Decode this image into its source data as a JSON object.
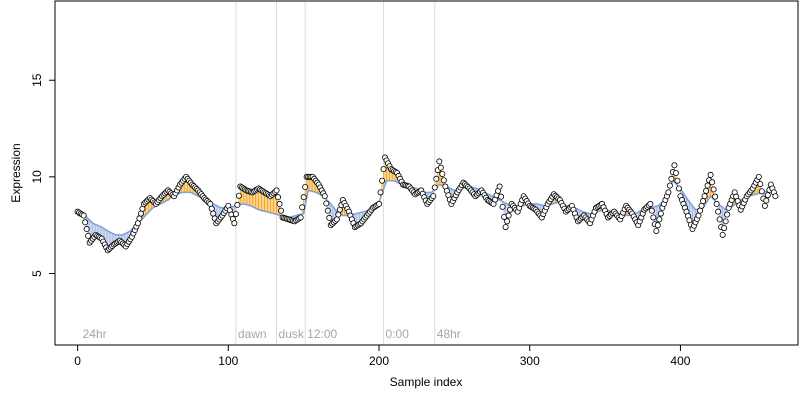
{
  "chart_data": {
    "type": "line",
    "xlabel": "Sample index",
    "ylabel": "Expression",
    "xlim": [
      -15,
      478
    ],
    "ylim": [
      1.3,
      19.1
    ],
    "x_ticks": [
      0,
      100,
      200,
      300,
      400
    ],
    "y_ticks": [
      5,
      10,
      15
    ],
    "x_tick_labels": [
      "0",
      "100",
      "200",
      "300",
      "400"
    ],
    "y_tick_labels": [
      "5",
      "10",
      "15"
    ],
    "grid": false,
    "legend": "none",
    "sections": [
      {
        "label": "24hr",
        "x": 2
      },
      {
        "label": "dawn",
        "x": 105
      },
      {
        "label": "dusk",
        "x": 132
      },
      {
        "label": "12:00",
        "x": 151
      },
      {
        "label": "0:00",
        "x": 203
      },
      {
        "label": "48hr",
        "x": 237
      }
    ],
    "colors": {
      "fitted_line": "#7f9fd8",
      "residual_above": "#f5a623",
      "residual_below": "#9fb8e6",
      "section_line": "#dcdcdc",
      "points_fill": "#ffffff",
      "points_stroke": "#000000"
    },
    "series": [
      {
        "role": "fitted",
        "anchors": [
          [
            0,
            8.0
          ],
          [
            5,
            8.0
          ],
          [
            10,
            7.6
          ],
          [
            16,
            7.4
          ],
          [
            20,
            7.2
          ],
          [
            25,
            7.0
          ],
          [
            30,
            7.0
          ],
          [
            35,
            7.2
          ],
          [
            40,
            7.6
          ],
          [
            45,
            8.0
          ],
          [
            50,
            8.4
          ],
          [
            55,
            8.6
          ],
          [
            60,
            8.8
          ],
          [
            65,
            9.1
          ],
          [
            70,
            9.2
          ],
          [
            75,
            9.2
          ],
          [
            80,
            9.0
          ],
          [
            85,
            8.8
          ],
          [
            90,
            8.6
          ],
          [
            95,
            8.4
          ],
          [
            100,
            8.4
          ],
          [
            105,
            8.5
          ],
          [
            110,
            8.6
          ],
          [
            115,
            8.5
          ],
          [
            120,
            8.3
          ],
          [
            125,
            8.2
          ],
          [
            130,
            8.1
          ],
          [
            135,
            8.0
          ],
          [
            140,
            7.9
          ],
          [
            145,
            8.0
          ],
          [
            150,
            8.1
          ],
          [
            153,
            9.3
          ],
          [
            158,
            9.2
          ],
          [
            163,
            9.0
          ],
          [
            168,
            8.6
          ],
          [
            172,
            8.2
          ],
          [
            176,
            8.0
          ],
          [
            180,
            8.0
          ],
          [
            185,
            8.1
          ],
          [
            190,
            8.2
          ],
          [
            195,
            8.3
          ],
          [
            200,
            8.7
          ],
          [
            205,
            9.8
          ],
          [
            210,
            9.8
          ],
          [
            215,
            9.6
          ],
          [
            220,
            9.5
          ],
          [
            225,
            9.4
          ],
          [
            230,
            9.2
          ],
          [
            235,
            9.2
          ],
          [
            240,
            9.6
          ],
          [
            245,
            9.5
          ],
          [
            250,
            9.3
          ],
          [
            255,
            9.4
          ],
          [
            260,
            9.5
          ],
          [
            265,
            9.4
          ],
          [
            270,
            9.2
          ],
          [
            275,
            9.0
          ],
          [
            280,
            8.8
          ],
          [
            285,
            8.6
          ],
          [
            290,
            8.4
          ],
          [
            295,
            8.5
          ],
          [
            300,
            8.6
          ],
          [
            305,
            8.6
          ],
          [
            310,
            8.5
          ],
          [
            315,
            8.6
          ],
          [
            320,
            8.7
          ],
          [
            325,
            8.5
          ],
          [
            330,
            8.4
          ],
          [
            335,
            8.2
          ],
          [
            340,
            8.1
          ],
          [
            345,
            8.2
          ],
          [
            350,
            8.3
          ],
          [
            355,
            8.2
          ],
          [
            360,
            8.0
          ],
          [
            365,
            8.0
          ],
          [
            370,
            8.1
          ],
          [
            375,
            8.3
          ],
          [
            380,
            8.4
          ],
          [
            385,
            8.5
          ],
          [
            390,
            8.8
          ],
          [
            395,
            9.8
          ],
          [
            400,
            9.4
          ],
          [
            405,
            8.8
          ],
          [
            410,
            8.3
          ],
          [
            415,
            8.4
          ],
          [
            420,
            9.0
          ],
          [
            425,
            8.6
          ],
          [
            430,
            8.3
          ],
          [
            435,
            8.5
          ],
          [
            440,
            8.8
          ],
          [
            445,
            9.0
          ],
          [
            450,
            9.1
          ],
          [
            455,
            9.2
          ],
          [
            460,
            9.3
          ],
          [
            463,
            9.3
          ]
        ]
      },
      {
        "role": "observed",
        "anchors": [
          [
            0,
            8.2
          ],
          [
            4,
            8.0
          ],
          [
            8,
            6.6
          ],
          [
            12,
            7.0
          ],
          [
            16,
            6.8
          ],
          [
            20,
            6.2
          ],
          [
            24,
            6.5
          ],
          [
            28,
            6.7
          ],
          [
            32,
            6.4
          ],
          [
            36,
            6.9
          ],
          [
            40,
            7.6
          ],
          [
            44,
            8.6
          ],
          [
            48,
            8.9
          ],
          [
            52,
            8.6
          ],
          [
            56,
            9.0
          ],
          [
            60,
            9.3
          ],
          [
            64,
            9.0
          ],
          [
            68,
            9.6
          ],
          [
            72,
            10.0
          ],
          [
            76,
            9.6
          ],
          [
            80,
            9.3
          ],
          [
            84,
            8.9
          ],
          [
            88,
            8.6
          ],
          [
            92,
            7.6
          ],
          [
            96,
            8.0
          ],
          [
            100,
            8.5
          ],
          [
            104,
            7.6
          ],
          [
            108,
            9.5
          ],
          [
            112,
            9.3
          ],
          [
            116,
            9.2
          ],
          [
            120,
            9.4
          ],
          [
            124,
            9.2
          ],
          [
            128,
            9.0
          ],
          [
            132,
            9.3
          ],
          [
            136,
            7.9
          ],
          [
            140,
            7.8
          ],
          [
            144,
            7.7
          ],
          [
            148,
            7.9
          ],
          [
            152,
            10.0
          ],
          [
            156,
            10.0
          ],
          [
            160,
            9.6
          ],
          [
            164,
            9.0
          ],
          [
            168,
            7.5
          ],
          [
            172,
            7.8
          ],
          [
            176,
            8.8
          ],
          [
            180,
            8.2
          ],
          [
            184,
            7.4
          ],
          [
            188,
            7.6
          ],
          [
            192,
            8.0
          ],
          [
            196,
            8.4
          ],
          [
            200,
            8.6
          ],
          [
            204,
            11.0
          ],
          [
            208,
            10.4
          ],
          [
            212,
            10.2
          ],
          [
            216,
            9.6
          ],
          [
            220,
            9.5
          ],
          [
            224,
            9.1
          ],
          [
            228,
            9.3
          ],
          [
            232,
            8.6
          ],
          [
            236,
            9.0
          ],
          [
            240,
            10.8
          ],
          [
            244,
            9.5
          ],
          [
            248,
            8.6
          ],
          [
            252,
            9.2
          ],
          [
            256,
            9.7
          ],
          [
            260,
            9.4
          ],
          [
            264,
            9.0
          ],
          [
            268,
            9.3
          ],
          [
            272,
            8.8
          ],
          [
            276,
            8.6
          ],
          [
            280,
            9.5
          ],
          [
            284,
            7.4
          ],
          [
            288,
            8.6
          ],
          [
            292,
            8.2
          ],
          [
            296,
            9.0
          ],
          [
            300,
            8.5
          ],
          [
            304,
            8.3
          ],
          [
            308,
            7.9
          ],
          [
            312,
            8.6
          ],
          [
            316,
            9.1
          ],
          [
            320,
            8.8
          ],
          [
            324,
            8.2
          ],
          [
            328,
            8.5
          ],
          [
            332,
            7.7
          ],
          [
            336,
            8.0
          ],
          [
            340,
            7.6
          ],
          [
            344,
            8.4
          ],
          [
            348,
            8.6
          ],
          [
            352,
            7.9
          ],
          [
            356,
            8.2
          ],
          [
            360,
            7.8
          ],
          [
            364,
            8.5
          ],
          [
            368,
            8.1
          ],
          [
            372,
            7.5
          ],
          [
            376,
            8.3
          ],
          [
            380,
            8.6
          ],
          [
            384,
            7.2
          ],
          [
            388,
            8.4
          ],
          [
            392,
            9.2
          ],
          [
            396,
            10.6
          ],
          [
            400,
            9.0
          ],
          [
            404,
            8.2
          ],
          [
            408,
            7.3
          ],
          [
            412,
            8.0
          ],
          [
            416,
            9.0
          ],
          [
            420,
            10.1
          ],
          [
            424,
            8.6
          ],
          [
            428,
            7.0
          ],
          [
            432,
            8.4
          ],
          [
            436,
            9.2
          ],
          [
            440,
            8.3
          ],
          [
            444,
            9.0
          ],
          [
            448,
            9.4
          ],
          [
            452,
            10.0
          ],
          [
            456,
            8.5
          ],
          [
            460,
            9.6
          ],
          [
            463,
            9.0
          ]
        ]
      }
    ]
  }
}
